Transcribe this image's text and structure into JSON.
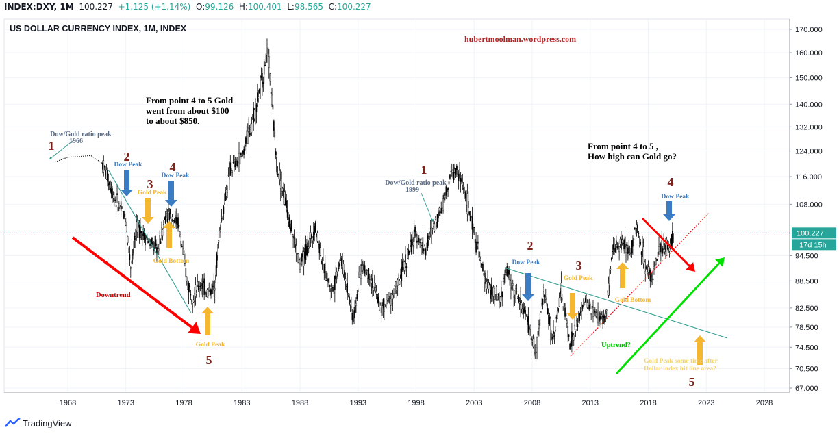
{
  "header": {
    "symbol": "INDEX:DXY, 1M",
    "last": "100.227",
    "change": "+1.125 (+1.14%)",
    "o_label": "O:",
    "o": "99.126",
    "h_label": "H:",
    "h": "100.401",
    "l_label": "L:",
    "l": "98.565",
    "c_label": "C:",
    "c": "100.227"
  },
  "chart_title": "US DOLLAR CURRENCY INDEX, 1M, INDEX",
  "watermark": "hubertmoolman.wordpress.com",
  "price_tag": "100.227",
  "time_tag": "17d 15h",
  "brand": "TradingView",
  "colors": {
    "up": "#26a69a",
    "candle": "#000000",
    "red": "#ff0000",
    "green": "#00e000",
    "gold": "#f5b630",
    "blue": "#3b7dc4",
    "teal": "#2e9c8f",
    "brown": "#7b241c"
  },
  "annotations": {
    "n1a": "1",
    "n2a": "2",
    "n3a": "3",
    "n4a": "4",
    "n5a": "5",
    "n1b": "1",
    "n2b": "2",
    "n3b": "3",
    "n4b": "4",
    "n5b": "5",
    "dowgold1": "Dow/Gold ratio peak",
    "dowgold1_year": "1966",
    "dowgold2": "Dow/Gold ratio peak",
    "dowgold2_year": "1999",
    "dowpeak1": "Dow Peak",
    "dowpeak2": "Dow Peak",
    "dowpeak3": "Dow Peak",
    "dowpeak4": "Dow Peak",
    "goldpeak1": "Gold Peak",
    "goldpeak2": "Gold Peak",
    "goldpeak3": "Gold Peak",
    "goldbottom1": "Gold Bottom",
    "goldbottom2": "Gold Bottom",
    "downtrend": "Downtrend",
    "uptrend": "Uptrend?",
    "text1_l1": "From point 4 to 5 Gold",
    "text1_l2": "went from about $100",
    "text1_l3": "to about $850.",
    "text2_l1": "From point 4 to 5 ,",
    "text2_l2": "How high can Gold go?",
    "future_l1": "Gold Peak some time after",
    "future_l2": "Dollar index hit line area?"
  },
  "chart_data": {
    "type": "candlestick",
    "title": "US DOLLAR CURRENCY INDEX, 1M, INDEX",
    "scale": "log",
    "ylim": [
      67,
      170
    ],
    "xlim": [
      1962,
      2031
    ],
    "x_ticks": [
      "1968",
      "1973",
      "1978",
      "1983",
      "1988",
      "1993",
      "1998",
      "2003",
      "2008",
      "2013",
      "2018",
      "2023",
      "2028"
    ],
    "y_ticks": [
      "170.000",
      "160.000",
      "150.000",
      "140.000",
      "132.000",
      "124.000",
      "116.000",
      "108.000",
      "100.227",
      "94.500",
      "88.500",
      "82.500",
      "78.500",
      "74.500",
      "70.500",
      "67.000"
    ],
    "last_price": 100.227,
    "path": [
      [
        1966.9,
        120.5
      ],
      [
        1968.0,
        122
      ],
      [
        1970.0,
        122.5
      ],
      [
        1971.0,
        120
      ],
      [
        1972.0,
        110
      ],
      [
        1973.0,
        104
      ],
      [
        1973.4,
        92
      ],
      [
        1974.0,
        102
      ],
      [
        1975.0,
        98
      ],
      [
        1975.8,
        96
      ],
      [
        1976.5,
        106
      ],
      [
        1977.5,
        103
      ],
      [
        1978.3,
        88
      ],
      [
        1978.8,
        85
      ],
      [
        1979.5,
        88
      ],
      [
        1980.0,
        86
      ],
      [
        1980.6,
        87
      ],
      [
        1981.2,
        103
      ],
      [
        1982.0,
        118
      ],
      [
        1983.0,
        122
      ],
      [
        1984.0,
        136
      ],
      [
        1984.8,
        150
      ],
      [
        1985.2,
        162
      ],
      [
        1985.6,
        140
      ],
      [
        1986.0,
        120
      ],
      [
        1986.8,
        108
      ],
      [
        1987.5,
        98
      ],
      [
        1988.0,
        92
      ],
      [
        1988.6,
        96
      ],
      [
        1989.3,
        102
      ],
      [
        1990.0,
        92
      ],
      [
        1990.8,
        86
      ],
      [
        1991.5,
        94
      ],
      [
        1992.0,
        88
      ],
      [
        1992.6,
        80
      ],
      [
        1993.3,
        92
      ],
      [
        1994.0,
        90
      ],
      [
        1995.0,
        82
      ],
      [
        1995.6,
        84
      ],
      [
        1996.5,
        88
      ],
      [
        1997.3,
        95
      ],
      [
        1998.0,
        100
      ],
      [
        1998.8,
        96
      ],
      [
        1999.5,
        102
      ],
      [
        2000.3,
        108
      ],
      [
        2000.9,
        116
      ],
      [
        2001.5,
        118
      ],
      [
        2002.0,
        114
      ],
      [
        2003.0,
        100
      ],
      [
        2003.8,
        90
      ],
      [
        2004.5,
        86
      ],
      [
        2005.2,
        84
      ],
      [
        2005.8,
        91
      ],
      [
        2006.5,
        86
      ],
      [
        2007.3,
        82
      ],
      [
        2008.0,
        76
      ],
      [
        2008.3,
        73
      ],
      [
        2009.0,
        86
      ],
      [
        2009.8,
        76
      ],
      [
        2010.5,
        86
      ],
      [
        2011.3,
        75
      ],
      [
        2012.0,
        80
      ],
      [
        2012.5,
        84
      ],
      [
        2013.5,
        81
      ],
      [
        2014.3,
        80
      ],
      [
        2015.0,
        96
      ],
      [
        2015.6,
        98
      ],
      [
        2016.5,
        96
      ],
      [
        2017.0,
        102
      ],
      [
        2017.8,
        92
      ],
      [
        2018.3,
        89
      ],
      [
        2019.0,
        96
      ],
      [
        2019.8,
        97
      ],
      [
        2020.2,
        100.2
      ]
    ],
    "trendlines": [
      {
        "name": "red-dotted-support",
        "points": [
          [
            2011.3,
            72.8
          ],
          [
            2023.2,
            105.5
          ]
        ]
      },
      {
        "name": "teal-line-2006",
        "points": [
          [
            2005.7,
            91.5
          ],
          [
            2024.8,
            76.3
          ]
        ]
      },
      {
        "name": "teal-line-1971",
        "points": [
          [
            1971.5,
            118
          ],
          [
            1978.6,
            81.5
          ]
        ]
      }
    ]
  }
}
